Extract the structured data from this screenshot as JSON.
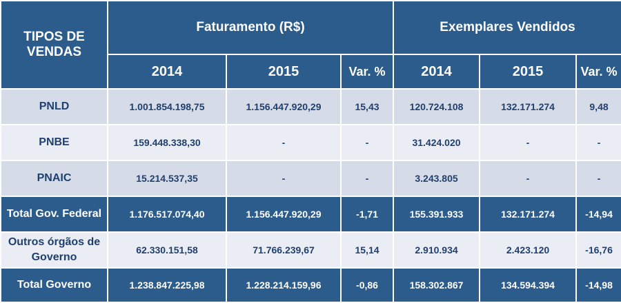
{
  "header": {
    "corner": "TIPOS DE VENDAS",
    "groups": [
      "Faturamento (R$)",
      "Exemplares Vendidos"
    ],
    "subheaders": [
      "2014",
      "2015",
      "Var. %",
      "2014",
      "2015",
      "Var. %"
    ]
  },
  "rows": [
    {
      "label": "PNLD",
      "values": [
        "1.001.854.198,75",
        "1.156.447.920,29",
        "15,43",
        "120.724.108",
        "132.171.274",
        "9,48"
      ]
    },
    {
      "label": "PNBE",
      "values": [
        "159.448.338,30",
        "-",
        "-",
        "31.424.020",
        "-",
        "-"
      ]
    },
    {
      "label": "PNAIC",
      "values": [
        "15.214.537,35",
        "-",
        "-",
        "3.243.805",
        "-",
        "-"
      ]
    },
    {
      "label": "Total Gov. Federal",
      "values": [
        "1.176.517.074,40",
        "1.156.447.920,29",
        "-1,71",
        "155.391.933",
        "132.171.274",
        "-14,94"
      ]
    },
    {
      "label": "Outros órgãos de Governo",
      "values": [
        "62.330.151,58",
        "71.766.239,67",
        "15,14",
        "2.910.934",
        "2.423.120",
        "-16,76"
      ]
    },
    {
      "label": "Total Governo",
      "values": [
        "1.238.847.225,98",
        "1.228.214.159,96",
        "-0,86",
        "158.302.867",
        "134.594.394",
        "-14,98"
      ]
    }
  ]
}
